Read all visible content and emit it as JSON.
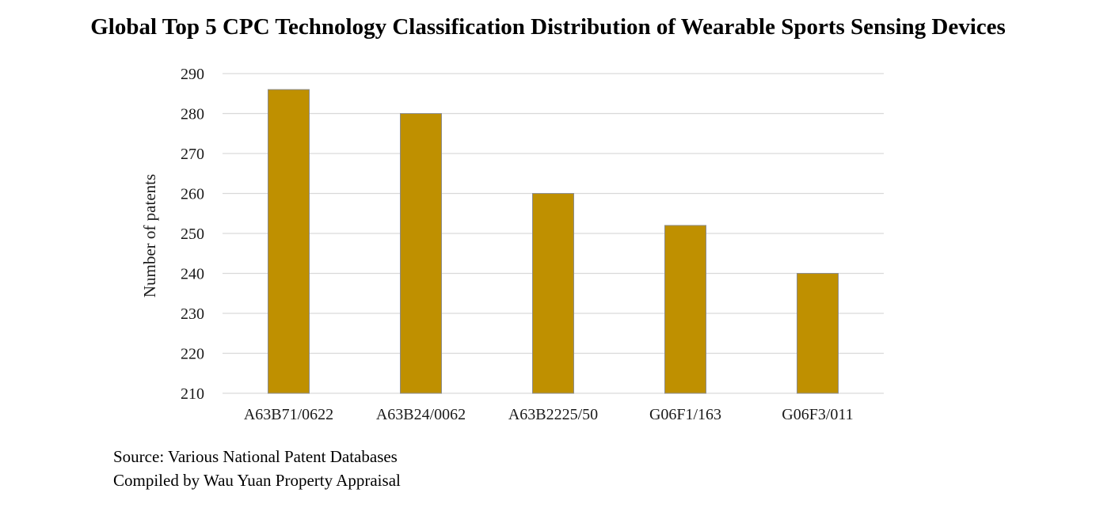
{
  "chart_data": {
    "type": "bar",
    "title": "Global Top 5 CPC Technology Classification Distribution of Wearable Sports Sensing Devices",
    "xlabel": "",
    "ylabel": "Number of patents",
    "categories": [
      "A63B71/0622",
      "A63B24/0062",
      "A63B2225/50",
      "G06F1/163",
      "G06F3/011"
    ],
    "values": [
      286,
      280,
      260,
      252,
      240
    ],
    "ylim": [
      210,
      290
    ],
    "yticks": [
      210,
      220,
      230,
      240,
      250,
      260,
      270,
      280,
      290
    ],
    "grid": true,
    "legend": "none",
    "bar_color": "#BF9000",
    "bar_edge_color": "#8C8C8C",
    "grid_color": "#D9D9D9"
  },
  "footer": {
    "source_line": "Source: Various National Patent Databases",
    "compiled_line": "Compiled by Wau Yuan Property Appraisal"
  }
}
